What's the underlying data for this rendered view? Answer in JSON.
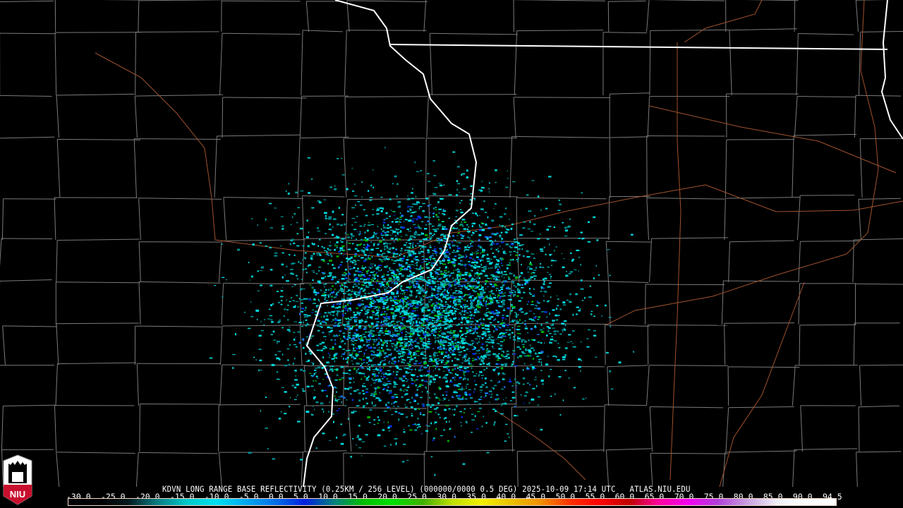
{
  "product_caption": "KDVN LONG RANGE BASE REFLECTIVITY (0.25KM / 256 LEVEL) (000000/0000 0.5 DEG) 2025-10-09 17:14 UTC   ATLAS.NIU.EDU",
  "colorbar": {
    "unit_labels": [
      "-30.0",
      "-25.0",
      "-20.0",
      "-15.0",
      "-10.0",
      "-5.0",
      "0.0",
      "5.0",
      "10.0",
      "15.0",
      "20.0",
      "25.0",
      "30.0",
      "35.0",
      "40.0",
      "45.0",
      "50.0",
      "55.0",
      "60.0",
      "65.0",
      "70.0",
      "75.0",
      "80.0",
      "85.0",
      "90.0",
      "94.5"
    ],
    "colors": [
      "#000000",
      "#000000",
      "#02181c",
      "#0a7b80",
      "#00c8c8",
      "#00e0f0",
      "#00a8f0",
      "#0070e8",
      "#0020e0",
      "#008080",
      "#00c000",
      "#00e000",
      "#40b000",
      "#c0e000",
      "#f0f000",
      "#e8c000",
      "#f09000",
      "#ff3000",
      "#ff0000",
      "#c00000",
      "#ff00a0",
      "#f000f0",
      "#b040d8",
      "#c8a0e0",
      "#f0f0f8",
      "#ffffff",
      "#ffffff"
    ]
  },
  "logo": {
    "text": "NIU"
  },
  "colors": {
    "state_border": "#ffffff",
    "county_line": "#7a7a7a",
    "highway": "#a0522d",
    "echo_colors": [
      "#00c8c8",
      "#00e0e8",
      "#008c90",
      "#1878f0",
      "#0030e0",
      "#00b000"
    ]
  }
}
